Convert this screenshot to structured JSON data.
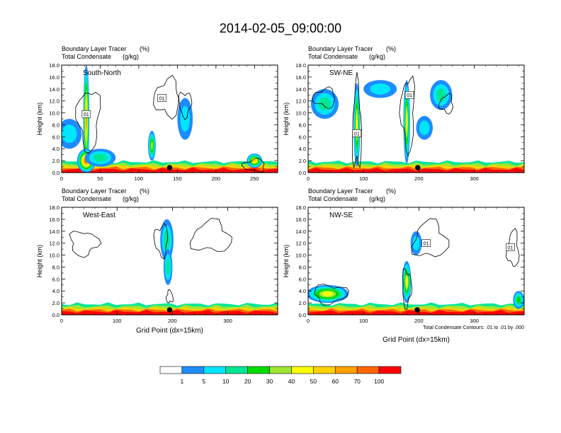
{
  "figure": {
    "title": "2014-02-05_09:00:00",
    "contour_note": "Total Condensate Contours: .01 to .01 by .000",
    "contour_label": "01"
  },
  "colors": {
    "palette": [
      "#ffffff",
      "#1e8cff",
      "#00e6ff",
      "#00e696",
      "#00dc00",
      "#a0e632",
      "#ffff00",
      "#ffd200",
      "#ffa000",
      "#ff6400",
      "#ff0000"
    ],
    "background": "#ffffff",
    "contour": "#000000"
  },
  "colorbar": {
    "labels": [
      "1",
      "5",
      "10",
      "20",
      "30",
      "40",
      "50",
      "60",
      "70",
      "100"
    ],
    "levels": [
      0,
      1,
      5,
      10,
      20,
      30,
      40,
      50,
      60,
      70,
      100,
      101
    ]
  },
  "chart_data": [
    {
      "id": "south-north",
      "type": "heatmap",
      "title_left_1": "Boundary Layer Tracer",
      "title_right_1": "(%)",
      "title_left_2": "Total Condensate",
      "title_right_2": "(g/kg)",
      "panel_label": "South-North",
      "ylabel": "Height (km)",
      "xlabel": "",
      "xlim": [
        0,
        280
      ],
      "ylim": [
        0,
        18
      ],
      "xticks": [
        0,
        50,
        100,
        150,
        200,
        250
      ],
      "yticks": [
        "0.0",
        "2.0",
        "4.0",
        "6.0",
        "8.0",
        "10.0",
        "12.0",
        "14.0",
        "16.0",
        "18.0"
      ],
      "marker_x": 140,
      "boundary_layer_top_km": 1.8,
      "plumes": [
        {
          "x": 32,
          "z": 9.0,
          "half_width": 4,
          "depth": 9,
          "value": 60
        },
        {
          "x": 32,
          "z": 2.0,
          "half_width": 12,
          "depth": 2,
          "value": 90
        },
        {
          "x": 10,
          "z": 6.5,
          "half_width": 16,
          "depth": 2.5,
          "value": 8
        },
        {
          "x": 50,
          "z": 2.5,
          "half_width": 20,
          "depth": 1.5,
          "value": 15
        },
        {
          "x": 117,
          "z": 4.5,
          "half_width": 5,
          "depth": 2.5,
          "value": 30
        },
        {
          "x": 160,
          "z": 9.0,
          "half_width": 10,
          "depth": 3.5,
          "value": 5
        },
        {
          "x": 250,
          "z": 2.0,
          "half_width": 10,
          "depth": 1.2,
          "value": 55
        }
      ],
      "contours": [
        {
          "x": 35,
          "z": 9.0,
          "half_width": 14,
          "depth": 5
        },
        {
          "x": 137,
          "z": 12.5,
          "half_width": 16,
          "depth": 3
        },
        {
          "x": 160,
          "z": 11.5,
          "half_width": 8,
          "depth": 2
        },
        {
          "x": 250,
          "z": 1.2,
          "half_width": 14,
          "depth": 1
        }
      ],
      "contour_label_pos": [
        [
          32,
          9.8
        ],
        [
          130,
          12.5
        ]
      ]
    },
    {
      "id": "sw-ne",
      "type": "heatmap",
      "title_left_1": "Boundary Layer Tracer",
      "title_right_1": "(%)",
      "title_left_2": "Total Condensate",
      "title_right_2": "(g/kg)",
      "panel_label": "SW-NE",
      "ylabel": "Height (km)",
      "xlabel": "",
      "xlim": [
        0,
        390
      ],
      "ylim": [
        0,
        18
      ],
      "xticks": [
        0,
        100,
        200,
        300
      ],
      "yticks": [
        "0.0",
        "2.0",
        "4.0",
        "6.0",
        "8.0",
        "10.0",
        "12.0",
        "14.0",
        "16.0",
        "18.0"
      ],
      "marker_x": 198,
      "boundary_layer_top_km": 1.8,
      "plumes": [
        {
          "x": 88,
          "z": 8.0,
          "half_width": 6,
          "depth": 7,
          "value": 40
        },
        {
          "x": 178,
          "z": 8.5,
          "half_width": 6,
          "depth": 7,
          "value": 45
        },
        {
          "x": 30,
          "z": 11.5,
          "half_width": 25,
          "depth": 2.5,
          "value": 12
        },
        {
          "x": 130,
          "z": 14.0,
          "half_width": 30,
          "depth": 1.5,
          "value": 8
        },
        {
          "x": 240,
          "z": 13.0,
          "half_width": 20,
          "depth": 2.5,
          "value": 10
        },
        {
          "x": 210,
          "z": 7.5,
          "half_width": 15,
          "depth": 2,
          "value": 8
        }
      ],
      "contours": [
        {
          "x": 88,
          "z": 7.5,
          "half_width": 8,
          "depth": 7
        },
        {
          "x": 180,
          "z": 10.0,
          "half_width": 12,
          "depth": 6
        },
        {
          "x": 250,
          "z": 11.5,
          "half_width": 12,
          "depth": 1.5
        },
        {
          "x": 30,
          "z": 12.5,
          "half_width": 20,
          "depth": 1.5
        }
      ],
      "contour_label_pos": [
        [
          88,
          6.6
        ],
        [
          183,
          13.0
        ]
      ]
    },
    {
      "id": "west-east",
      "type": "heatmap",
      "title_left_1": "Boundary Layer Tracer",
      "title_right_1": "(%)",
      "title_left_2": "Total Condensate",
      "title_right_2": "(g/kg)",
      "panel_label": "West-East",
      "ylabel": "Height (km)",
      "xlabel": "Grid Point (dx=15km)",
      "xlim": [
        0,
        390
      ],
      "ylim": [
        0,
        18
      ],
      "xticks": [
        0,
        100,
        200,
        300
      ],
      "yticks": [
        "0.0",
        "2.0",
        "4.0",
        "6.0",
        "8.0",
        "10.0",
        "12.0",
        "14.0",
        "16.0",
        "18.0"
      ],
      "marker_x": 195,
      "boundary_layer_top_km": 1.8,
      "plumes": [
        {
          "x": 190,
          "z": 12.5,
          "half_width": 12,
          "depth": 3.5,
          "value": 15
        },
        {
          "x": 192,
          "z": 8.0,
          "half_width": 8,
          "depth": 3,
          "value": 10
        }
      ],
      "contours": [
        {
          "x": 40,
          "z": 12.0,
          "half_width": 25,
          "depth": 2
        },
        {
          "x": 270,
          "z": 13.0,
          "half_width": 35,
          "depth": 2.5
        },
        {
          "x": 180,
          "z": 12.5,
          "half_width": 12,
          "depth": 2.5
        },
        {
          "x": 195,
          "z": 3.0,
          "half_width": 6,
          "depth": 1
        }
      ],
      "contour_label_pos": []
    },
    {
      "id": "nw-se",
      "type": "heatmap",
      "title_left_1": "Boundary Layer Tracer",
      "title_right_1": "(%)",
      "title_left_2": "Total Condensate",
      "title_right_2": "(g/kg)",
      "panel_label": "NW-SE",
      "ylabel": "Height (km)",
      "xlabel": "Grid Point (dx=15km)",
      "xlim": [
        0,
        390
      ],
      "ylim": [
        0,
        18
      ],
      "xticks": [
        0,
        100,
        200,
        300
      ],
      "yticks": [
        "0.0",
        "2.0",
        "4.0",
        "6.0",
        "8.0",
        "10.0",
        "12.0",
        "14.0",
        "16.0",
        "18.0"
      ],
      "marker_x": 197,
      "boundary_layer_top_km": 1.8,
      "plumes": [
        {
          "x": 35,
          "z": 3.5,
          "half_width": 38,
          "depth": 1.5,
          "value": 45
        },
        {
          "x": 178,
          "z": 5.5,
          "half_width": 8,
          "depth": 3.5,
          "value": 40
        },
        {
          "x": 195,
          "z": 12.0,
          "half_width": 10,
          "depth": 2,
          "value": 8
        },
        {
          "x": 380,
          "z": 2.5,
          "half_width": 10,
          "depth": 1.5,
          "value": 20
        }
      ],
      "contours": [
        {
          "x": 40,
          "z": 3.5,
          "half_width": 30,
          "depth": 1.5
        },
        {
          "x": 220,
          "z": 12.5,
          "half_width": 30,
          "depth": 3
        },
        {
          "x": 370,
          "z": 11.0,
          "half_width": 10,
          "depth": 3
        },
        {
          "x": 178,
          "z": 4.5,
          "half_width": 8,
          "depth": 3
        }
      ],
      "contour_label_pos": [
        [
          213,
          12.0
        ],
        [
          365,
          11.3
        ]
      ]
    }
  ]
}
